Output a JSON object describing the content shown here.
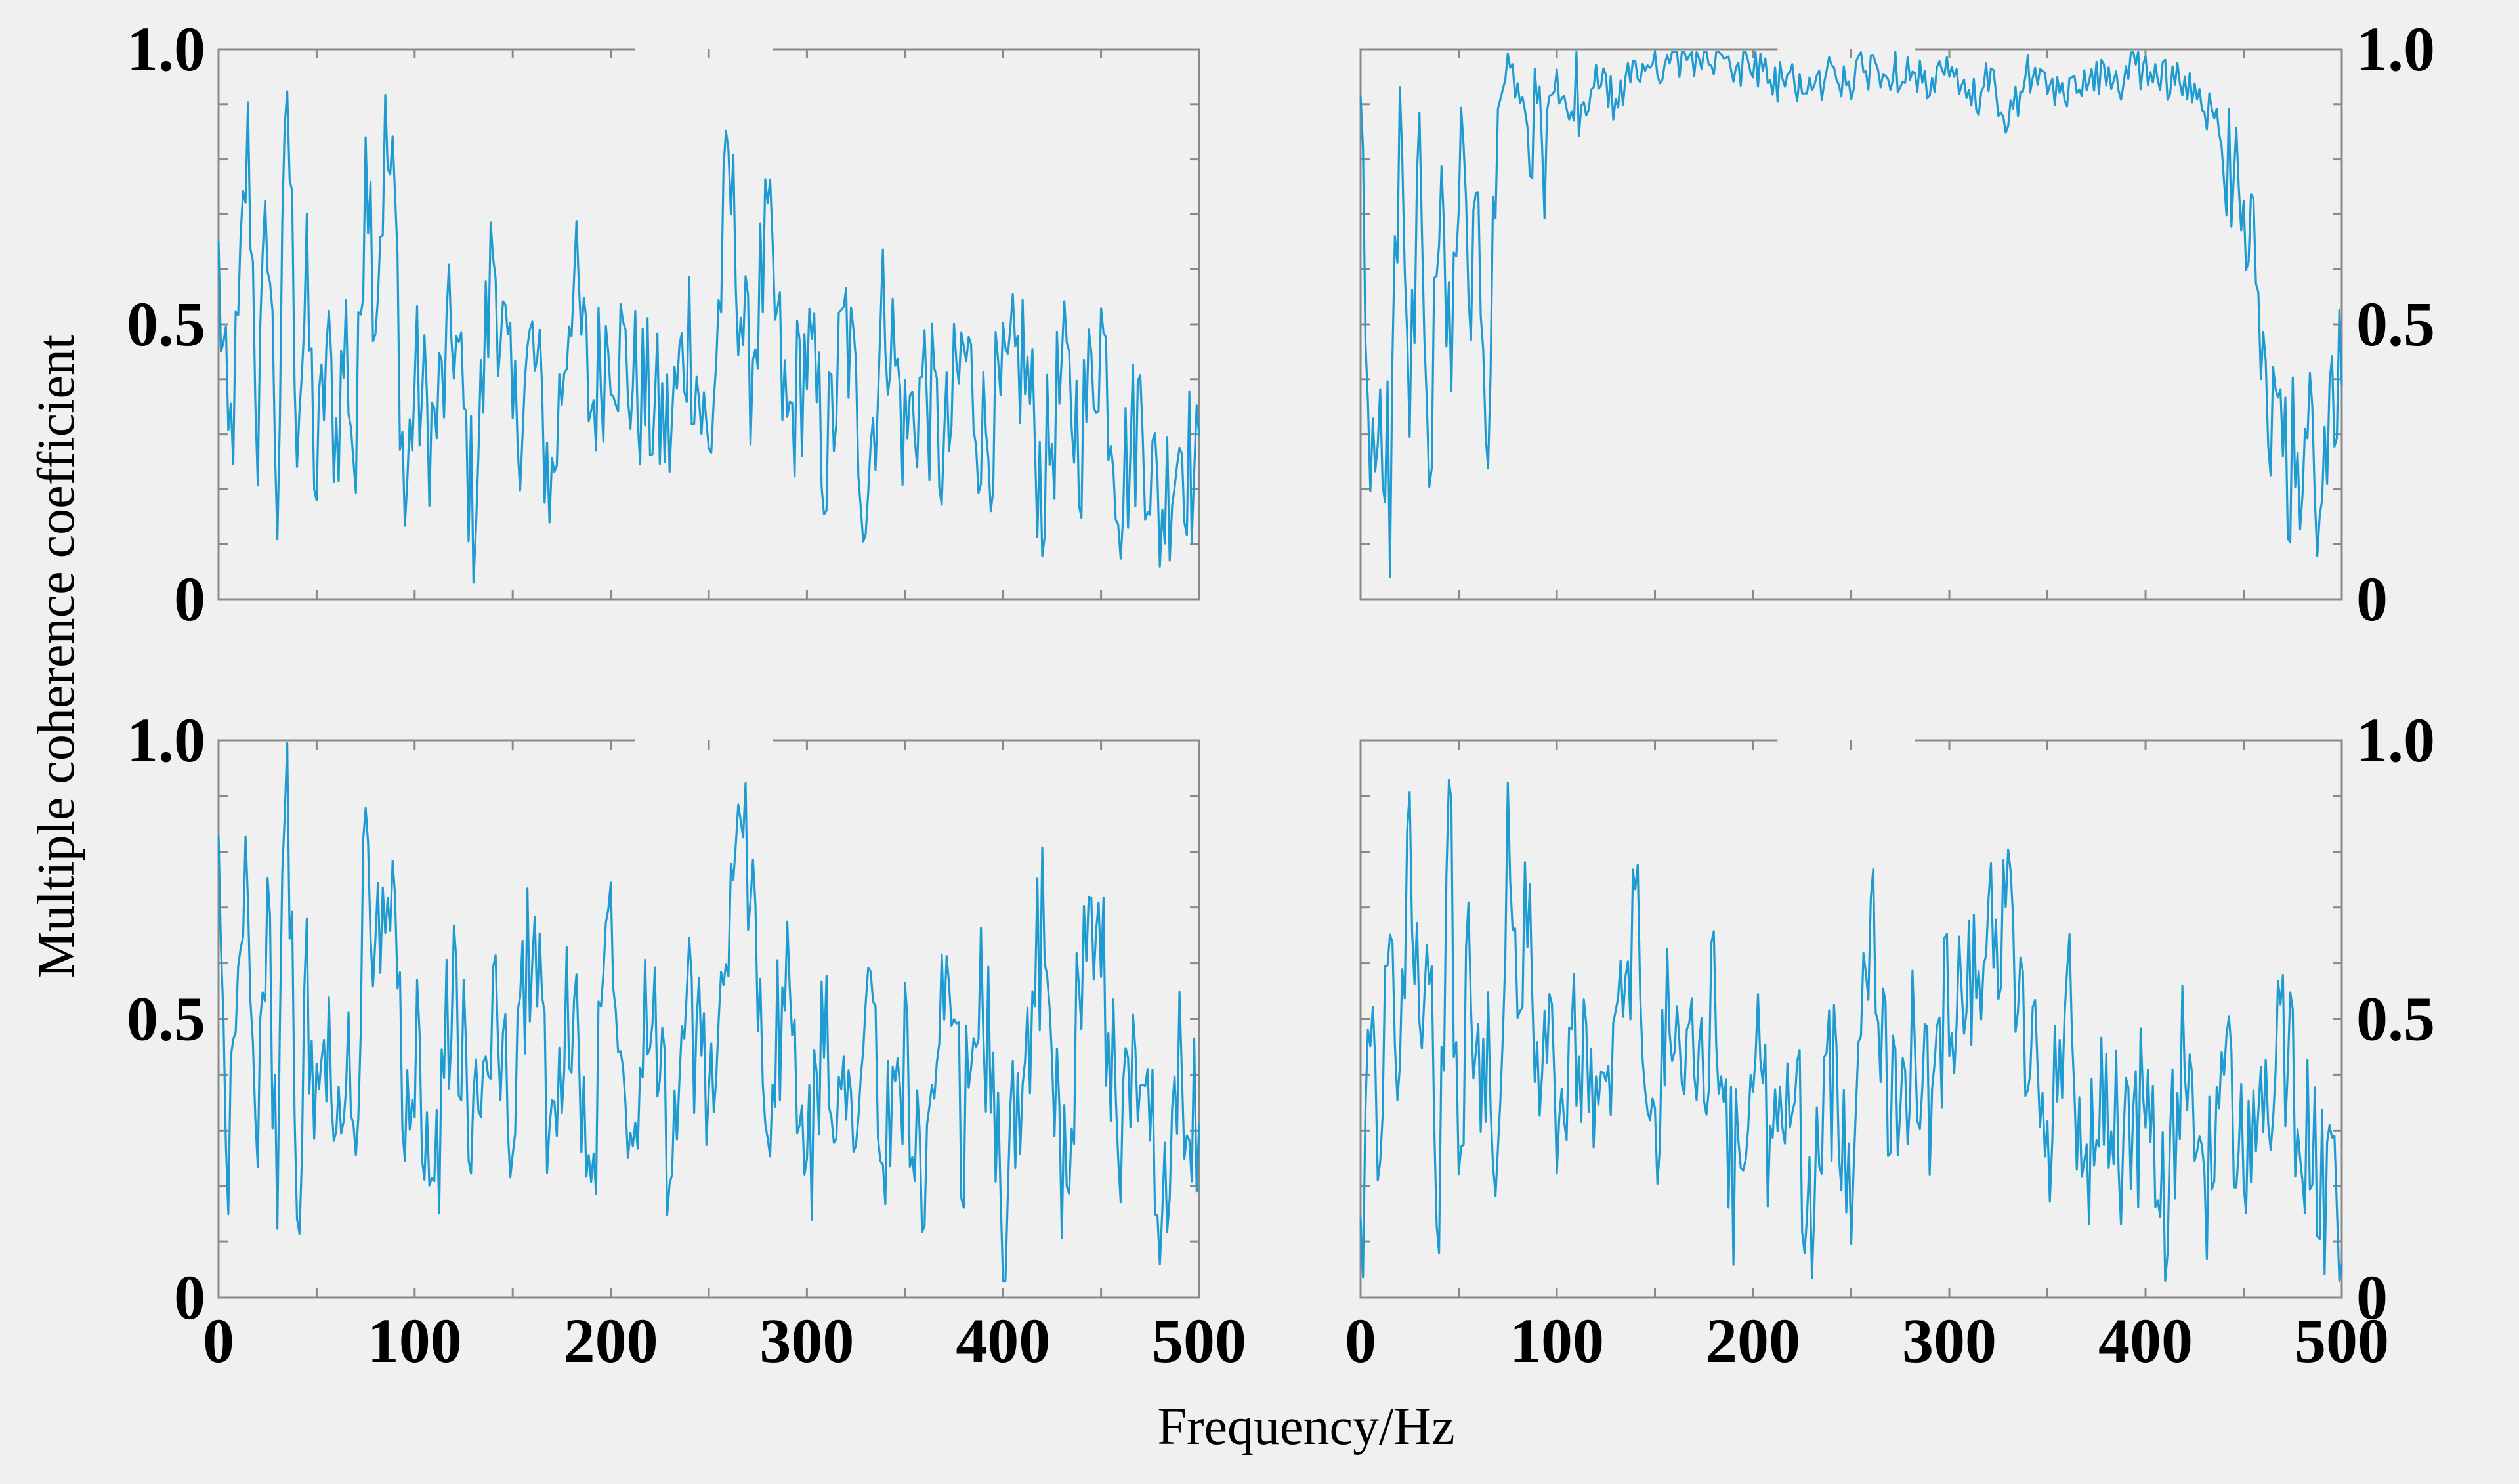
{
  "colors": {
    "line": "#1f9bd1",
    "background": "#f0f0f0",
    "frame": "#8a8a8a",
    "text": "#000000"
  },
  "figure": {
    "ylabel": "Multiple coherence coefficient",
    "xlabel": "Frequency/Hz"
  },
  "chart_data": [
    {
      "type": "line",
      "panel": "top-left",
      "xlim": [
        0,
        500
      ],
      "ylim": [
        0,
        1.0
      ],
      "x_ticks": [
        "0",
        "100",
        "200",
        "300",
        "400",
        "500"
      ],
      "y_ticks": [
        "0",
        "0.5",
        "1.0"
      ],
      "y_tick_side": "left",
      "x_tick_labels_shown": false,
      "series": [
        {
          "x": [
            0,
            5,
            10,
            15,
            20,
            25,
            30,
            35,
            40,
            45,
            50,
            55,
            60,
            65,
            70,
            75,
            80,
            85,
            90,
            95,
            100,
            110,
            120,
            130,
            140,
            150,
            160,
            170,
            180,
            190,
            200,
            210,
            220,
            230,
            240,
            250,
            260,
            270,
            280,
            290,
            300,
            310,
            320,
            330,
            340,
            350,
            360,
            370,
            380,
            390,
            400,
            410,
            420,
            430,
            440,
            450,
            460,
            470,
            480,
            490,
            500
          ],
          "y": [
            0.6,
            0.25,
            0.45,
            0.88,
            0.3,
            0.72,
            0.18,
            0.93,
            0.35,
            0.55,
            0.2,
            0.45,
            0.3,
            0.48,
            0.22,
            0.86,
            0.55,
            0.82,
            0.7,
            0.15,
            0.4,
            0.3,
            0.5,
            0.15,
            0.65,
            0.3,
            0.45,
            0.2,
            0.6,
            0.35,
            0.5,
            0.4,
            0.35,
            0.3,
            0.5,
            0.25,
            0.78,
            0.4,
            0.65,
            0.3,
            0.45,
            0.25,
            0.5,
            0.2,
            0.55,
            0.3,
            0.4,
            0.25,
            0.45,
            0.3,
            0.35,
            0.45,
            0.2,
            0.4,
            0.3,
            0.5,
            0.2,
            0.35,
            0.15,
            0.3,
            0.2
          ]
        }
      ]
    },
    {
      "type": "line",
      "panel": "top-right",
      "xlim": [
        0,
        500
      ],
      "ylim": [
        0,
        1.0
      ],
      "x_ticks": [
        "0",
        "100",
        "200",
        "300",
        "400",
        "500"
      ],
      "y_ticks": [
        "0",
        "0.5",
        "1.0"
      ],
      "y_tick_side": "right",
      "x_tick_labels_shown": false,
      "series": [
        {
          "x": [
            0,
            5,
            10,
            15,
            20,
            25,
            30,
            35,
            40,
            45,
            50,
            55,
            60,
            65,
            70,
            75,
            80,
            90,
            100,
            110,
            120,
            130,
            140,
            150,
            160,
            170,
            180,
            190,
            200,
            210,
            220,
            230,
            240,
            250,
            260,
            270,
            280,
            290,
            300,
            310,
            320,
            330,
            340,
            350,
            360,
            370,
            380,
            390,
            400,
            410,
            420,
            430,
            440,
            450,
            455,
            460,
            465,
            470,
            475,
            480,
            485,
            490,
            495,
            500
          ],
          "y": [
            0.85,
            0.2,
            0.4,
            0.2,
            0.9,
            0.3,
            0.85,
            0.15,
            0.7,
            0.45,
            0.8,
            0.55,
            0.65,
            0.3,
            0.88,
            0.97,
            0.92,
            0.8,
            0.93,
            0.85,
            0.95,
            0.9,
            0.96,
            0.98,
            0.97,
            0.99,
            0.98,
            0.96,
            0.98,
            0.93,
            0.95,
            0.92,
            0.96,
            0.94,
            0.97,
            0.95,
            0.98,
            0.92,
            0.96,
            0.9,
            0.94,
            0.87,
            0.95,
            0.93,
            0.91,
            0.96,
            0.94,
            0.95,
            0.97,
            0.95,
            0.93,
            0.9,
            0.85,
            0.78,
            0.6,
            0.45,
            0.35,
            0.2,
            0.25,
            0.15,
            0.3,
            0.1,
            0.35,
            0.5
          ]
        }
      ]
    },
    {
      "type": "line",
      "panel": "bottom-left",
      "xlim": [
        0,
        500
      ],
      "ylim": [
        0,
        1.0
      ],
      "x_ticks": [
        "0",
        "100",
        "200",
        "300",
        "400",
        "500"
      ],
      "y_ticks": [
        "0",
        "0.5",
        "1.0"
      ],
      "y_tick_side": "left",
      "x_tick_labels_shown": true,
      "series": [
        {
          "x": [
            0,
            5,
            10,
            15,
            20,
            25,
            30,
            35,
            40,
            45,
            50,
            55,
            60,
            65,
            70,
            75,
            80,
            85,
            90,
            95,
            100,
            110,
            120,
            130,
            140,
            150,
            160,
            170,
            180,
            190,
            200,
            210,
            220,
            230,
            240,
            250,
            260,
            270,
            280,
            290,
            300,
            310,
            320,
            330,
            340,
            350,
            360,
            370,
            380,
            390,
            400,
            410,
            420,
            430,
            440,
            450,
            460,
            470,
            480,
            490,
            500
          ],
          "y": [
            0.75,
            0.22,
            0.6,
            0.78,
            0.35,
            0.65,
            0.25,
            0.98,
            0.1,
            0.6,
            0.3,
            0.48,
            0.2,
            0.45,
            0.3,
            0.9,
            0.55,
            0.8,
            0.6,
            0.25,
            0.45,
            0.2,
            0.6,
            0.25,
            0.55,
            0.3,
            0.7,
            0.25,
            0.55,
            0.2,
            0.75,
            0.3,
            0.6,
            0.25,
            0.5,
            0.35,
            0.65,
            0.82,
            0.35,
            0.55,
            0.2,
            0.5,
            0.3,
            0.55,
            0.25,
            0.45,
            0.15,
            0.5,
            0.3,
            0.55,
            0.1,
            0.45,
            0.65,
            0.2,
            0.55,
            0.6,
            0.3,
            0.45,
            0.2,
            0.4,
            0.28
          ]
        }
      ]
    },
    {
      "type": "line",
      "panel": "bottom-right",
      "xlim": [
        0,
        500
      ],
      "ylim": [
        0,
        1.0
      ],
      "x_ticks": [
        "0",
        "100",
        "200",
        "300",
        "400",
        "500"
      ],
      "y_ticks": [
        "0",
        "0.5",
        "1.0"
      ],
      "y_tick_side": "right",
      "x_tick_labels_shown": true,
      "series": [
        {
          "x": [
            0,
            5,
            10,
            15,
            20,
            25,
            30,
            35,
            40,
            45,
            50,
            55,
            60,
            65,
            70,
            75,
            80,
            85,
            90,
            95,
            100,
            110,
            120,
            130,
            140,
            150,
            160,
            170,
            180,
            190,
            200,
            210,
            220,
            230,
            240,
            250,
            260,
            270,
            280,
            290,
            300,
            310,
            320,
            330,
            340,
            350,
            360,
            370,
            380,
            390,
            400,
            410,
            420,
            430,
            440,
            450,
            460,
            470,
            480,
            490,
            500
          ],
          "y": [
            0.05,
            0.45,
            0.2,
            0.7,
            0.3,
            0.9,
            0.4,
            0.55,
            0.15,
            0.92,
            0.25,
            0.6,
            0.35,
            0.5,
            0.25,
            0.9,
            0.4,
            0.78,
            0.3,
            0.55,
            0.2,
            0.5,
            0.3,
            0.4,
            0.7,
            0.25,
            0.6,
            0.35,
            0.55,
            0.2,
            0.45,
            0.25,
            0.38,
            0.15,
            0.4,
            0.25,
            0.75,
            0.3,
            0.45,
            0.35,
            0.55,
            0.6,
            0.65,
            0.68,
            0.45,
            0.3,
            0.55,
            0.2,
            0.4,
            0.25,
            0.35,
            0.15,
            0.45,
            0.2,
            0.4,
            0.25,
            0.35,
            0.45,
            0.3,
            0.2,
            0.1
          ]
        }
      ]
    }
  ]
}
